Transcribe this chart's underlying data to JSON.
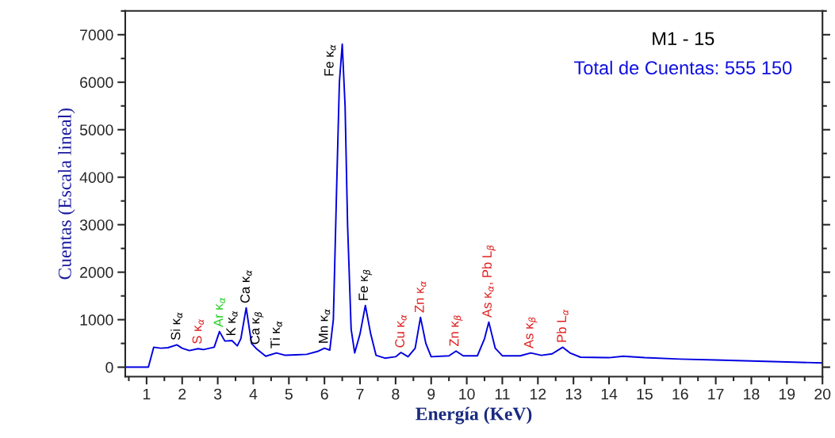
{
  "chart_data": {
    "type": "line",
    "title": "M1 - 15",
    "subtitle": "Total de Cuentas: 555 150",
    "xlabel": "Energía (KeV)",
    "ylabel": "Cuentas (Escala lineal)",
    "x": [
      0.4,
      1.05,
      1.2,
      1.4,
      1.6,
      1.85,
      2.0,
      2.2,
      2.45,
      2.6,
      2.9,
      3.05,
      3.2,
      3.4,
      3.55,
      3.65,
      3.8,
      3.95,
      4.1,
      4.35,
      4.65,
      4.9,
      5.2,
      5.5,
      5.8,
      6.0,
      6.15,
      6.25,
      6.35,
      6.42,
      6.5,
      6.58,
      6.65,
      6.75,
      6.85,
      7.0,
      7.15,
      7.3,
      7.45,
      7.7,
      8.0,
      8.15,
      8.35,
      8.55,
      8.7,
      8.85,
      9.0,
      9.5,
      9.7,
      9.9,
      10.3,
      10.5,
      10.62,
      10.8,
      11.0,
      11.5,
      11.8,
      12.1,
      12.4,
      12.7,
      12.9,
      13.2,
      14.0,
      14.4,
      15.0,
      16.0,
      17.0,
      18.0,
      19.0,
      20.0
    ],
    "series": [
      {
        "color": "#0000e0",
        "values": [
          0,
          0,
          420,
          400,
          410,
          470,
          400,
          350,
          390,
          370,
          420,
          750,
          550,
          560,
          450,
          600,
          1250,
          500,
          380,
          230,
          300,
          250,
          260,
          270,
          330,
          400,
          360,
          1000,
          4000,
          6000,
          6800,
          5500,
          3000,
          800,
          300,
          700,
          1300,
          700,
          250,
          190,
          220,
          310,
          220,
          400,
          1050,
          500,
          220,
          240,
          340,
          240,
          240,
          600,
          950,
          400,
          240,
          240,
          300,
          250,
          280,
          420,
          300,
          210,
          200,
          230,
          200,
          170,
          150,
          130,
          110,
          90
        ]
      }
    ],
    "xlim": [
      0.4,
      20
    ],
    "ylim": [
      -200,
      7500
    ],
    "xticks": [
      1,
      2,
      3,
      4,
      5,
      6,
      7,
      8,
      9,
      10,
      11,
      12,
      13,
      14,
      15,
      16,
      17,
      18,
      19,
      20
    ],
    "yticks": [
      0,
      1000,
      2000,
      3000,
      4000,
      5000,
      6000,
      7000
    ],
    "grid": false,
    "legend": false,
    "annotations": [
      {
        "text": "Si κ$_{α}$",
        "x": 1.85,
        "y": 470
      },
      {
        "text": "S κ$_{α}$",
        "x": 2.45,
        "y": 390
      },
      {
        "text": "Ar κ$_{α}$",
        "x": 3.05,
        "y": 750
      },
      {
        "text": "K κ$_{α}$",
        "x": 3.4,
        "y": 560
      },
      {
        "text": "Ca κ$_{α}$",
        "x": 3.8,
        "y": 1250
      },
      {
        "text": "Ca κ$_{β}$",
        "x": 4.1,
        "y": 380
      },
      {
        "text": "Ti κ$_{α}$",
        "x": 4.65,
        "y": 300
      },
      {
        "text": "Mn κ$_{α}$",
        "x": 6.0,
        "y": 400
      },
      {
        "text": "Fe κ$_{α}$",
        "x": 6.5,
        "y": 6800
      },
      {
        "text": "Fe κ$_{β}$",
        "x": 7.15,
        "y": 1300
      },
      {
        "text": "Cu κ$_{α}$",
        "x": 8.15,
        "y": 310
      },
      {
        "text": "Zn κ$_{α}$",
        "x": 8.7,
        "y": 1050
      },
      {
        "text": "Zn κ$_{β}$",
        "x": 9.7,
        "y": 340
      },
      {
        "text": "As κ$_{α}$, Pb L$_{β}$",
        "x": 10.62,
        "y": 950
      },
      {
        "text": "As κ$_{β}$",
        "x": 11.8,
        "y": 300
      },
      {
        "text": "Pb L$_{α}$",
        "x": 12.7,
        "y": 420
      }
    ]
  }
}
